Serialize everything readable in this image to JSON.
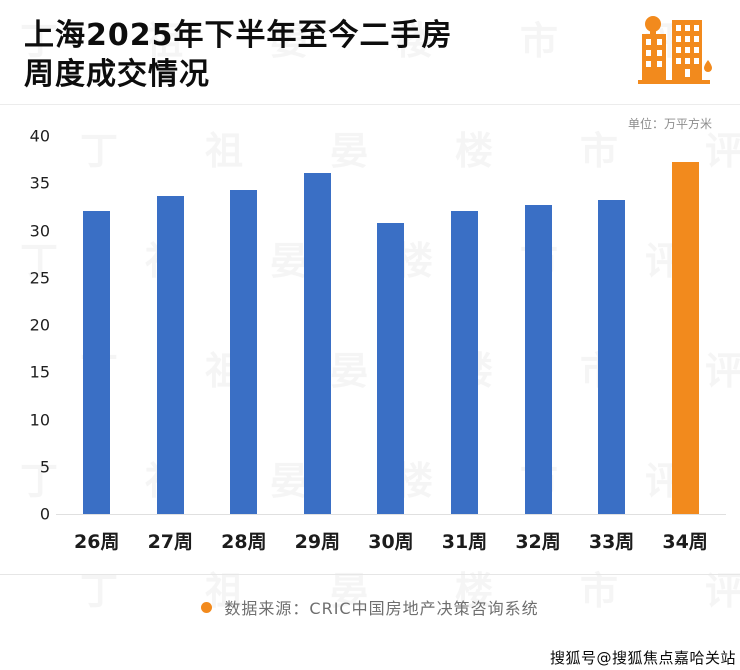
{
  "header": {
    "title_line1": "上海2025年下半年至今二手房",
    "title_line2": "周度成交情况"
  },
  "unit_label": "单位：万平方米",
  "chart_data": {
    "type": "bar",
    "title": "上海2025年下半年至今二手房周度成交情况",
    "categories": [
      "26周",
      "27周",
      "28周",
      "29周",
      "30周",
      "31周",
      "32周",
      "33周",
      "34周"
    ],
    "values": [
      32.1,
      33.6,
      34.3,
      36.1,
      30.8,
      32.1,
      32.7,
      33.2,
      37.3
    ],
    "xlabel": "",
    "ylabel": "万平方米",
    "ylim": [
      0,
      40
    ],
    "yticks": [
      0,
      5,
      10,
      15,
      20,
      25,
      30,
      35,
      40
    ],
    "grid": false,
    "legend_position": "none",
    "bar_color": "#3a6fc5",
    "highlight_color": "#f28a1d",
    "highlight_index": 8
  },
  "footer": {
    "source_text": "数据来源：CRIC中国房地产决策咨询系统",
    "bullet_color": "#f28a1d"
  },
  "watermark": {
    "pattern_chars": "丁祖晏楼市评",
    "sohu_badge": "搜狐号@搜狐焦点嘉哈关站"
  },
  "icons": {
    "building_icon_color": "#f28a1d"
  }
}
